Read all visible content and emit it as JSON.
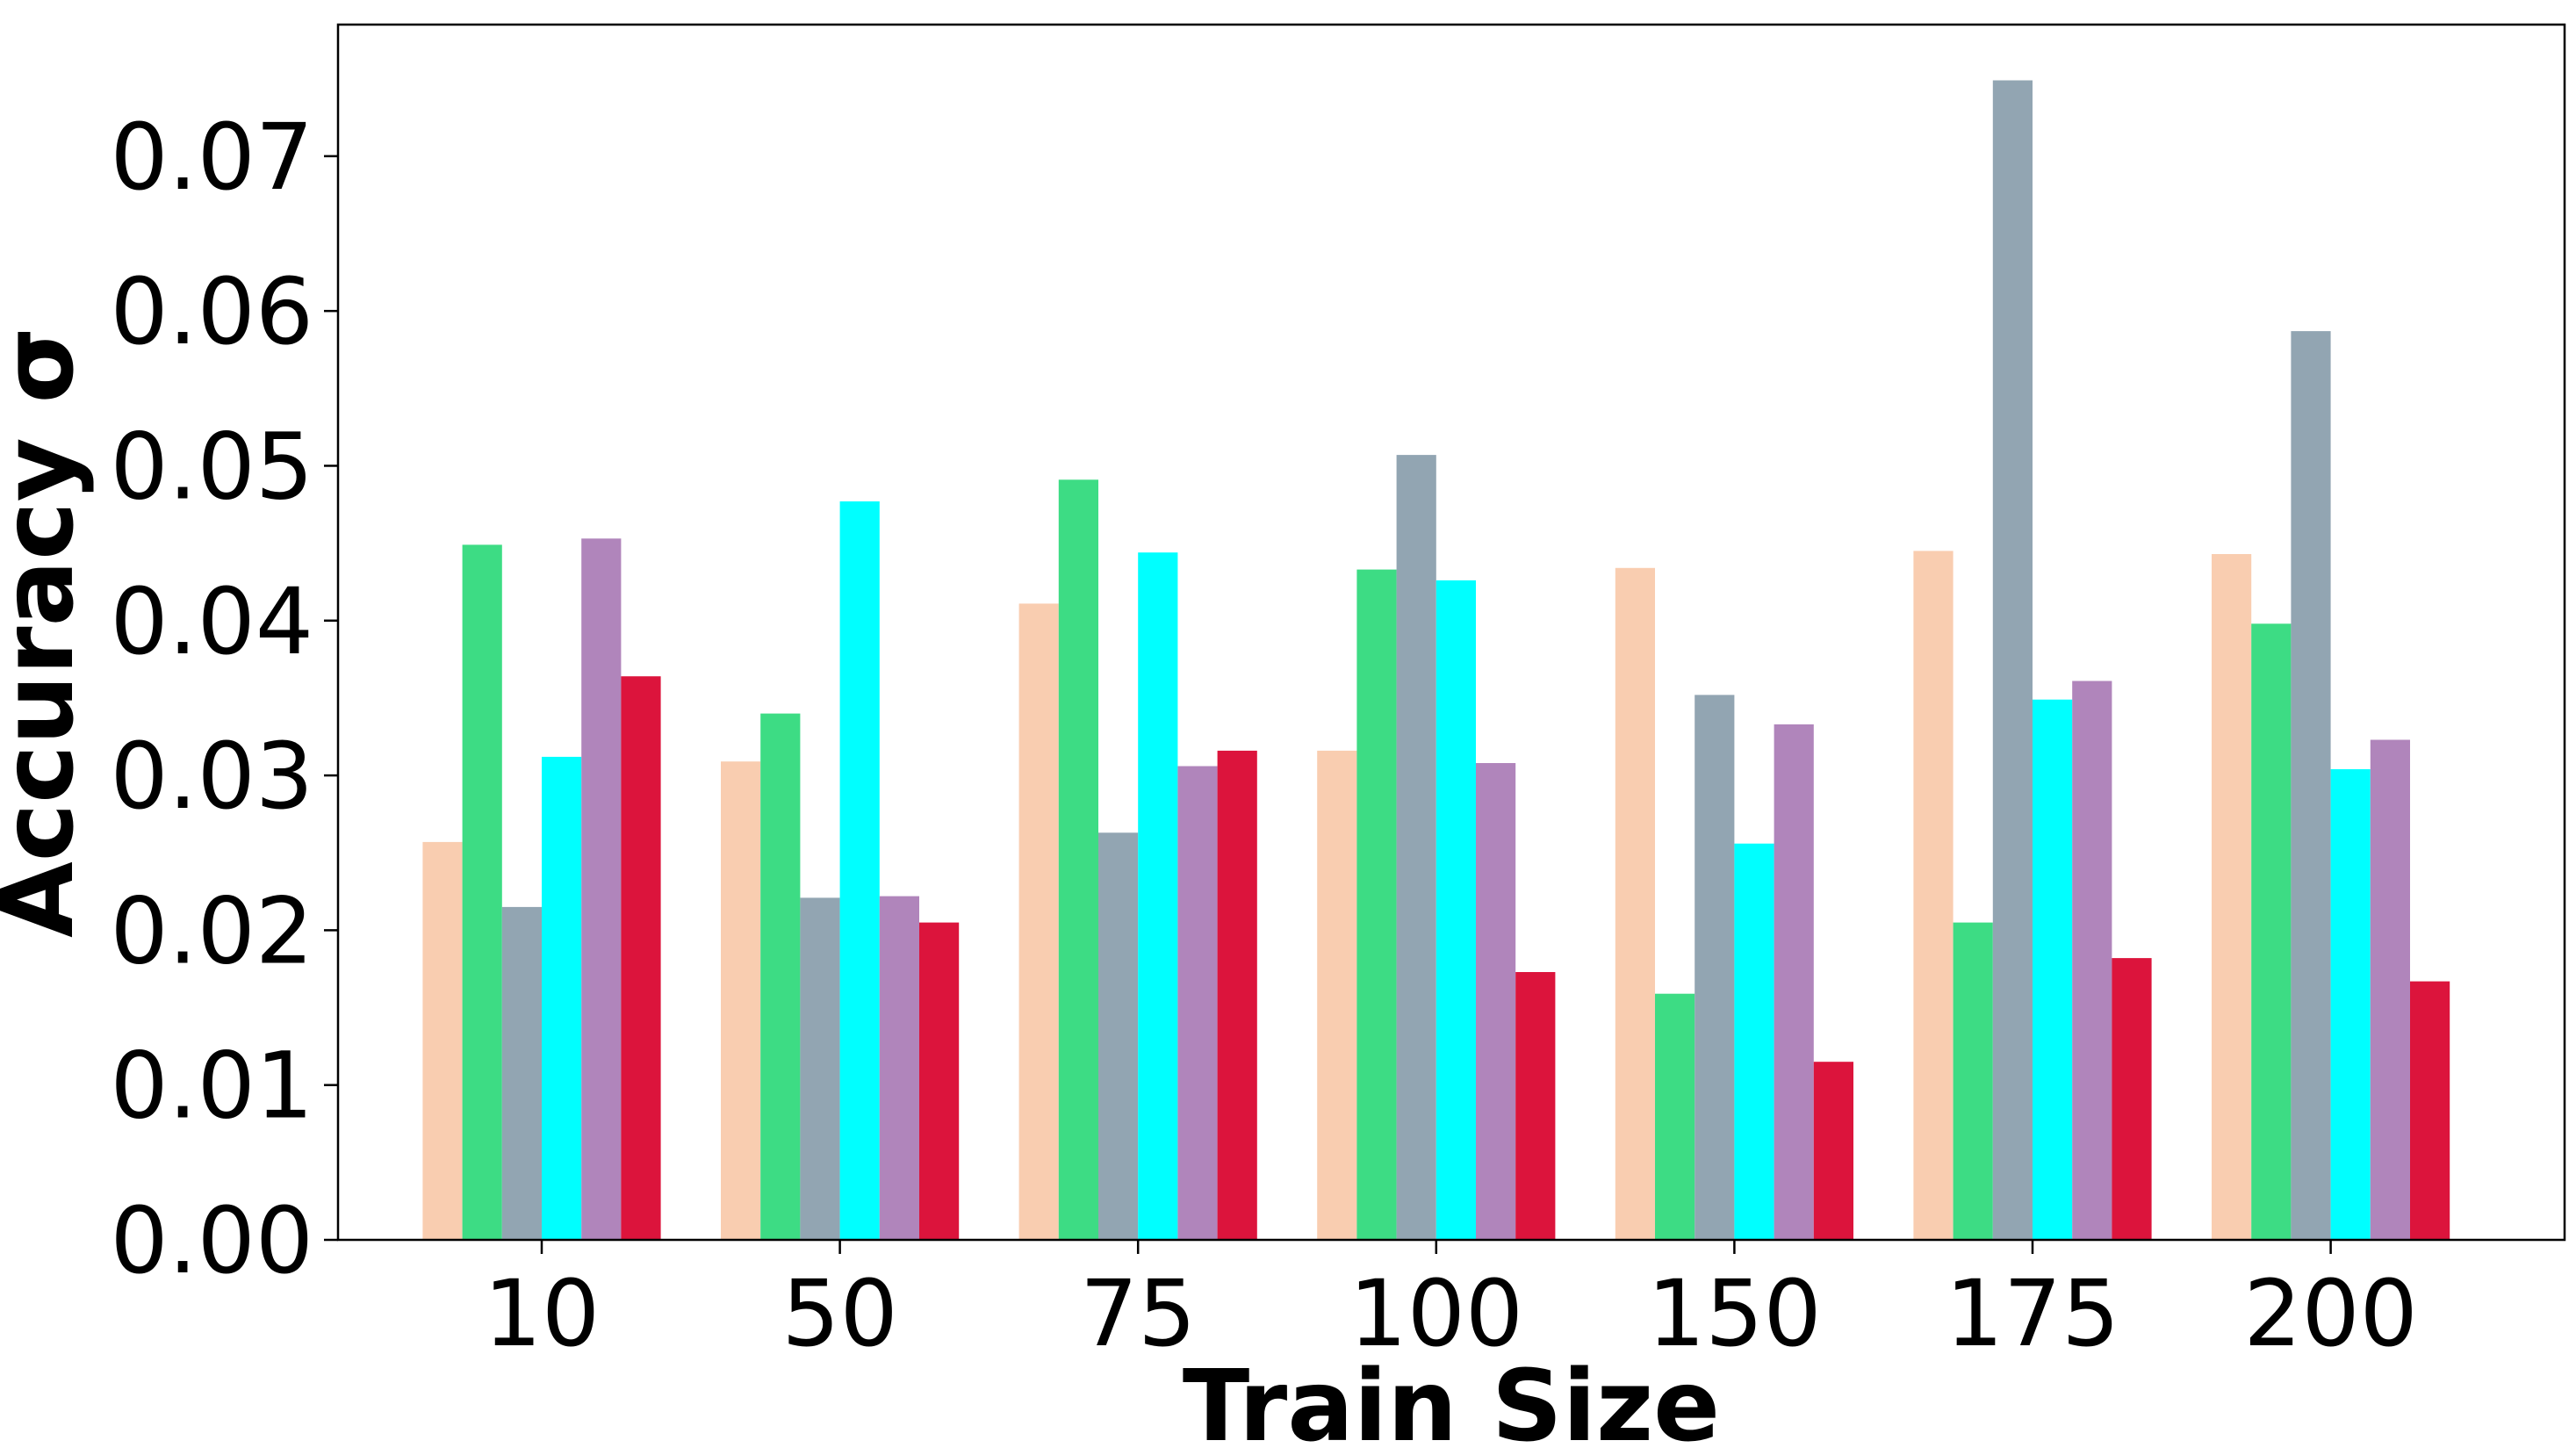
{
  "chart_data": {
    "type": "bar",
    "title": "",
    "xlabel": "Train Size",
    "ylabel": "Accuracy σ",
    "categories": [
      "10",
      "50",
      "75",
      "100",
      "150",
      "175",
      "200"
    ],
    "ylim": [
      0,
      0.0785
    ],
    "yticks": [
      "0.00",
      "0.01",
      "0.02",
      "0.03",
      "0.04",
      "0.05",
      "0.06",
      "0.07"
    ],
    "grid": false,
    "legend": "none",
    "series": [
      {
        "color": "#f9cdb0",
        "values": [
          0.0257,
          0.0309,
          0.0411,
          0.0316,
          0.0434,
          0.0445,
          0.0443
        ]
      },
      {
        "color": "#3ddc84",
        "values": [
          0.0449,
          0.034,
          0.0491,
          0.0433,
          0.0159,
          0.0205,
          0.0398
        ]
      },
      {
        "color": "#92a5b2",
        "values": [
          0.0215,
          0.0221,
          0.0263,
          0.0507,
          0.0352,
          0.0749,
          0.0587
        ]
      },
      {
        "color": "#00ffff",
        "values": [
          0.0312,
          0.0477,
          0.0444,
          0.0426,
          0.0256,
          0.0349,
          0.0304
        ]
      },
      {
        "color": "#b085bb",
        "values": [
          0.0453,
          0.0222,
          0.0306,
          0.0308,
          0.0333,
          0.0361,
          0.0323
        ]
      },
      {
        "color": "#dc143c",
        "values": [
          0.0364,
          0.0205,
          0.0316,
          0.0173,
          0.0115,
          0.0182,
          0.0167
        ]
      }
    ]
  }
}
